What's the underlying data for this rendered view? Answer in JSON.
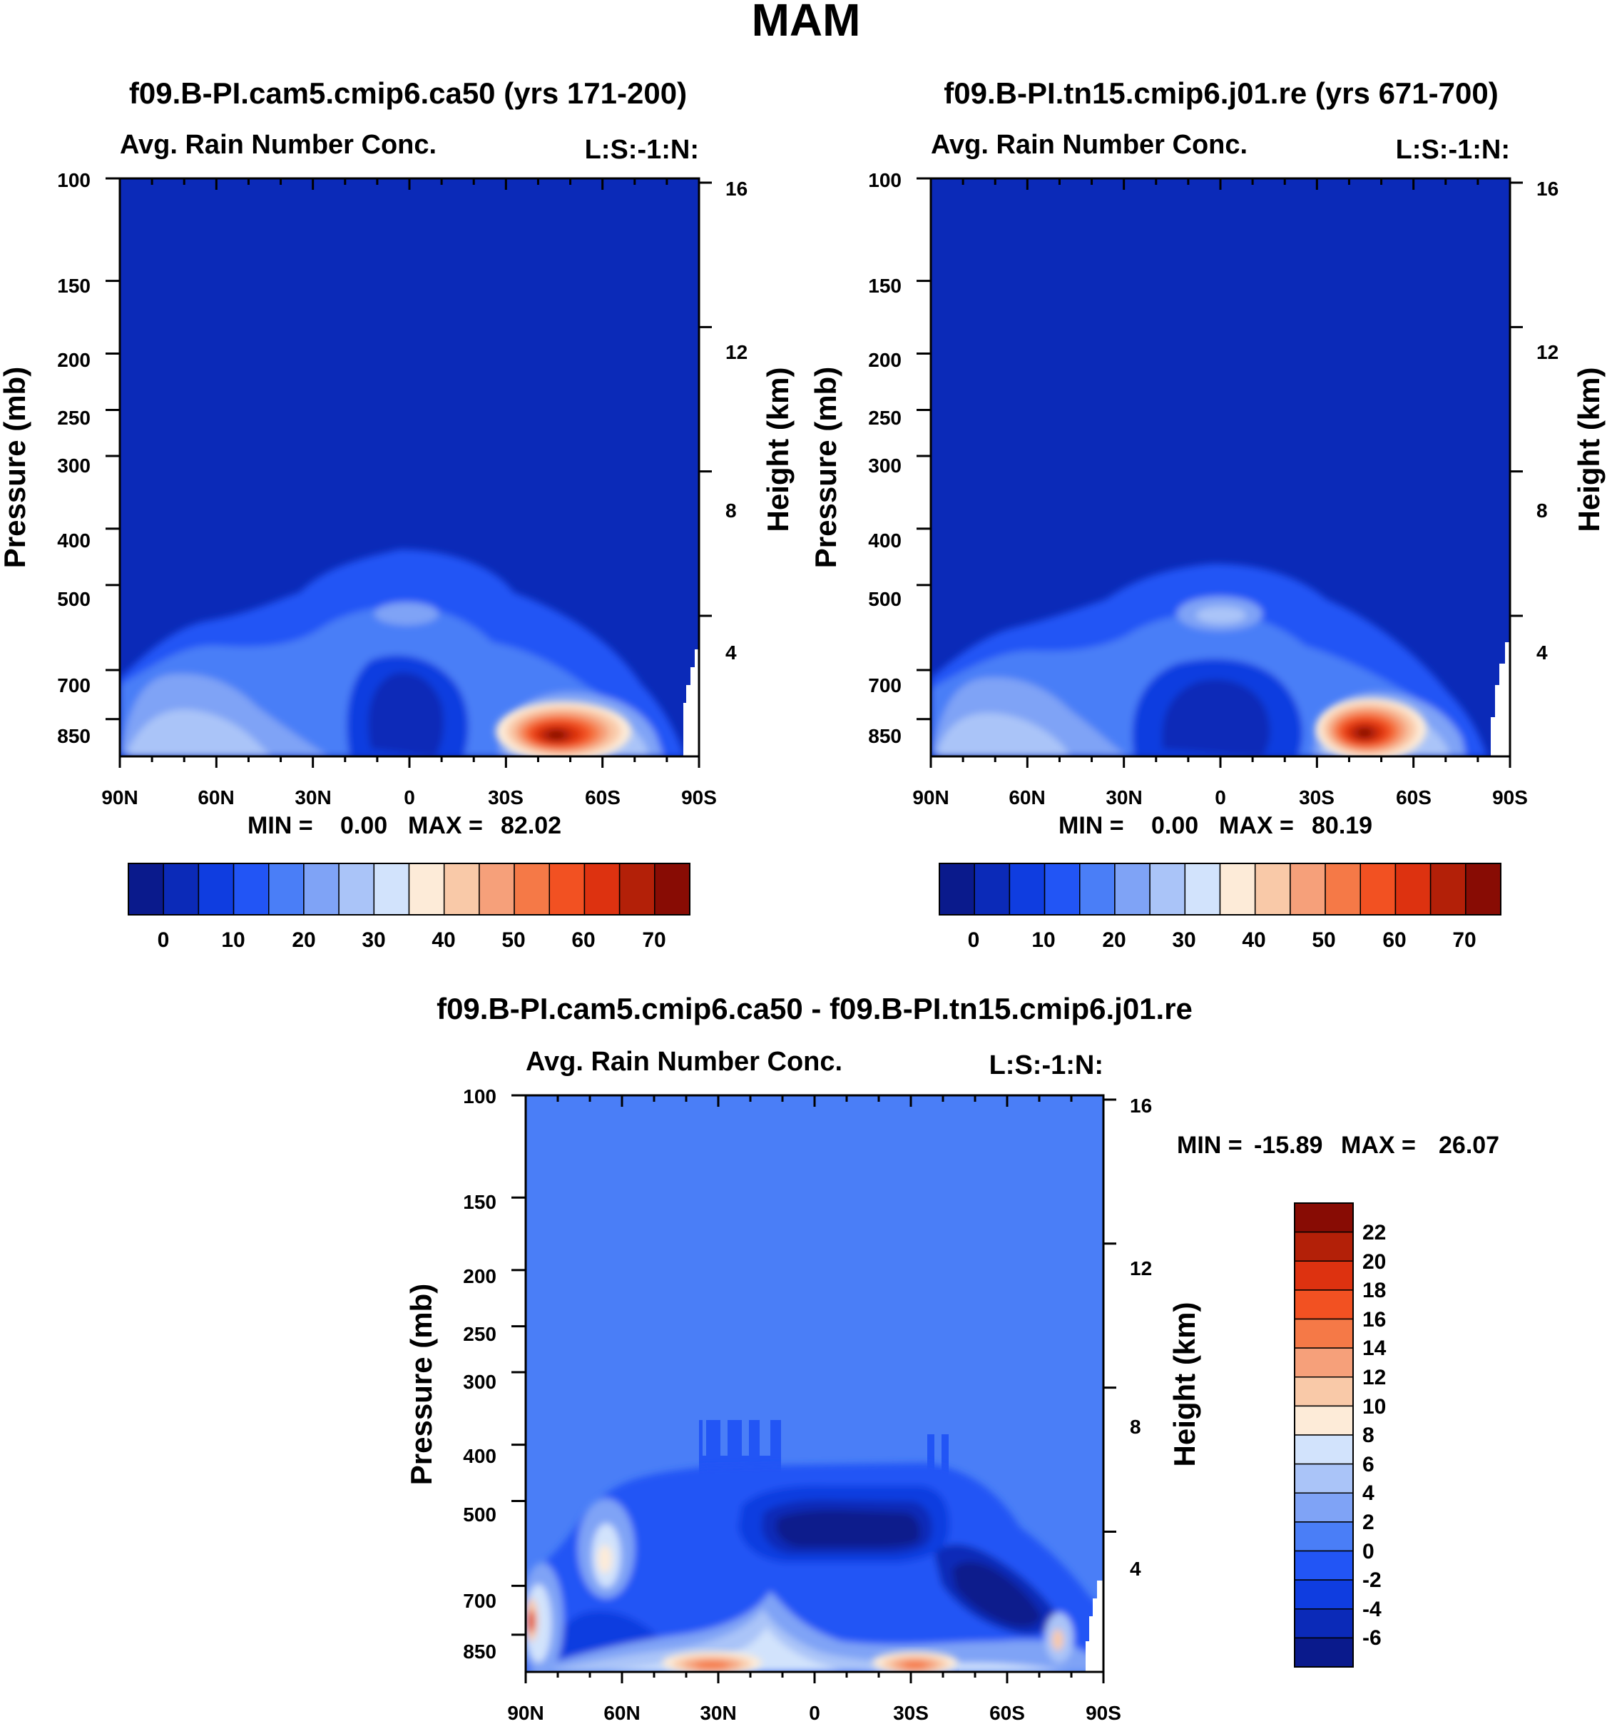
{
  "page_title": "MAM",
  "chart_data": [
    {
      "type": "contour",
      "title": "f09.B-PI.cam5.cmip6.ca50 (yrs 171-200)",
      "left_string": "Avg. Rain Number Conc.",
      "right_string": "L:S:-1:N:",
      "xlabel": "",
      "ylabel": "Pressure (mb)",
      "ylabel_right": "Height (km)",
      "x_ticks": [
        "90N",
        "60N",
        "30N",
        "0",
        "30S",
        "60S",
        "90S"
      ],
      "y_ticks": [
        "100",
        "150",
        "200",
        "250",
        "300",
        "400",
        "500",
        "700",
        "850"
      ],
      "y_ticks_right": [
        "16",
        "12",
        "8",
        "4"
      ],
      "ylim": [
        1000,
        100
      ],
      "stats": {
        "min_label": "MIN =",
        "min": "0.00",
        "max_label": "MAX =",
        "max": "82.02"
      },
      "colorbar": {
        "orientation": "horizontal",
        "labels": [
          "0",
          "10",
          "20",
          "30",
          "40",
          "50",
          "60",
          "70"
        ],
        "colors": [
          "#0a1a8c",
          "#0b2ab8",
          "#0f3de0",
          "#2255f5",
          "#4a7ef7",
          "#7fa3f6",
          "#aac4f8",
          "#d2e3fc",
          "#fdebd8",
          "#f9c9a8",
          "#f6a07a",
          "#f57947",
          "#f25122",
          "#dd3210",
          "#b32008",
          "#880c04"
        ]
      },
      "background_value_color": "#0b2ab8",
      "features": [
        {
          "level": "30",
          "desc": "low-level rain band 90N-60S below 500 mb"
        },
        {
          "level": "70",
          "desc": "maximum near 50S, 850 mb"
        }
      ]
    },
    {
      "type": "contour",
      "title": "f09.B-PI.tn15.cmip6.j01.re (yrs 671-700)",
      "left_string": "Avg. Rain Number Conc.",
      "right_string": "L:S:-1:N:",
      "xlabel": "",
      "ylabel": "Pressure (mb)",
      "ylabel_right": "Height (km)",
      "x_ticks": [
        "90N",
        "60N",
        "30N",
        "0",
        "30S",
        "60S",
        "90S"
      ],
      "y_ticks": [
        "100",
        "150",
        "200",
        "250",
        "300",
        "400",
        "500",
        "700",
        "850"
      ],
      "y_ticks_right": [
        "16",
        "12",
        "8",
        "4"
      ],
      "ylim": [
        1000,
        100
      ],
      "stats": {
        "min_label": "MIN =",
        "min": "0.00",
        "max_label": "MAX =",
        "max": "80.19"
      },
      "colorbar": {
        "orientation": "horizontal",
        "labels": [
          "0",
          "10",
          "20",
          "30",
          "40",
          "50",
          "60",
          "70"
        ],
        "colors": [
          "#0a1a8c",
          "#0b2ab8",
          "#0f3de0",
          "#2255f5",
          "#4a7ef7",
          "#7fa3f6",
          "#aac4f8",
          "#d2e3fc",
          "#fdebd8",
          "#f9c9a8",
          "#f6a07a",
          "#f57947",
          "#f25122",
          "#dd3210",
          "#b32008",
          "#880c04"
        ]
      },
      "background_value_color": "#0b2ab8",
      "features": [
        {
          "level": "30",
          "desc": "low-level rain band 90N-60S below 500 mb"
        },
        {
          "level": "70",
          "desc": "maximum near 50S, 850 mb"
        }
      ]
    },
    {
      "type": "contour",
      "title": "f09.B-PI.cam5.cmip6.ca50 - f09.B-PI.tn15.cmip6.j01.re",
      "left_string": "Avg. Rain Number Conc.",
      "right_string": "L:S:-1:N:",
      "xlabel": "",
      "ylabel": "Pressure (mb)",
      "ylabel_right": "Height (km)",
      "x_ticks": [
        "90N",
        "60N",
        "30N",
        "0",
        "30S",
        "60S",
        "90S"
      ],
      "y_ticks": [
        "100",
        "150",
        "200",
        "250",
        "300",
        "400",
        "500",
        "700",
        "850"
      ],
      "y_ticks_right": [
        "16",
        "12",
        "8",
        "4"
      ],
      "ylim": [
        1000,
        100
      ],
      "stats": {
        "min_label": "MIN =",
        "min": "-15.89",
        "max_label": "MAX =",
        "max": "26.07"
      },
      "colorbar": {
        "orientation": "vertical",
        "labels": [
          "22",
          "20",
          "18",
          "16",
          "14",
          "12",
          "10",
          "8",
          "6",
          "4",
          "2",
          "0",
          "-2",
          "-4",
          "-6"
        ],
        "colors": [
          "#880c04",
          "#b32008",
          "#dd3210",
          "#f25122",
          "#f57947",
          "#f6a07a",
          "#f9c9a8",
          "#fdebd8",
          "#d2e3fc",
          "#aac4f8",
          "#7fa3f6",
          "#4a7ef7",
          "#2255f5",
          "#0f3de0",
          "#0b2ab8",
          "#0a1a8c"
        ]
      },
      "background_value_color": "#4a7ef7",
      "features": [
        {
          "level": "-6",
          "desc": "negative core 0-30S near 500-600 mb"
        },
        {
          "level": "14",
          "desc": "positive maxima near 30N and 30S at 850 mb"
        }
      ]
    }
  ]
}
